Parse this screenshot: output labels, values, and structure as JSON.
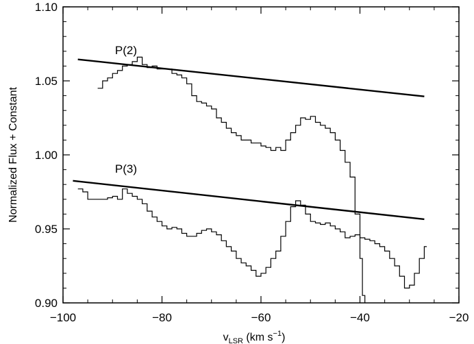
{
  "chart_data": {
    "type": "line",
    "title": "",
    "xlabel": {
      "main": "v",
      "sub": "LSR",
      "unit_pre": " (km s",
      "unit_sup": "−1",
      "unit_post": ")"
    },
    "ylabel": "Normalized Flux + Constant",
    "xlim": [
      -100,
      -20
    ],
    "ylim": [
      0.9,
      1.1
    ],
    "x_ticks": [
      -100,
      -80,
      -60,
      -40,
      -20
    ],
    "x_tick_labels": [
      "−100",
      "−80",
      "−60",
      "−40",
      "−20"
    ],
    "y_ticks": [
      0.9,
      0.95,
      1.0,
      1.05,
      1.1
    ],
    "y_tick_labels": [
      "0.90",
      "0.95",
      "1.00",
      "1.05",
      "1.10"
    ],
    "grid": false,
    "annotations": [
      {
        "text": "P(2)",
        "x": -89.5,
        "y": 1.068
      },
      {
        "text": "P(3)",
        "x": -89.5,
        "y": 0.988
      }
    ],
    "series": [
      {
        "style": "step",
        "x": [
          -93,
          -92,
          -91,
          -90,
          -89,
          -88,
          -87,
          -86,
          -85,
          -84,
          -83,
          -82,
          -81,
          -80,
          -79,
          -78,
          -77,
          -76,
          -75,
          -74,
          -73,
          -72,
          -71,
          -70,
          -69,
          -68,
          -67,
          -66,
          -65,
          -64,
          -63,
          -62,
          -61,
          -60,
          -59,
          -58,
          -57,
          -56,
          -55,
          -54,
          -53,
          -52,
          -51,
          -50,
          -49,
          -48,
          -47,
          -46,
          -45,
          -44,
          -43,
          -42,
          -41,
          -40,
          -39.5,
          -39
        ],
        "y": [
          1.045,
          1.05,
          1.052,
          1.055,
          1.057,
          1.06,
          1.061,
          1.063,
          1.066,
          1.061,
          1.059,
          1.06,
          1.058,
          1.058,
          1.058,
          1.055,
          1.054,
          1.052,
          1.048,
          1.04,
          1.036,
          1.035,
          1.033,
          1.031,
          1.025,
          1.022,
          1.018,
          1.015,
          1.013,
          1.01,
          1.01,
          1.008,
          1.008,
          1.006,
          1.005,
          1.003,
          1.005,
          1.003,
          1.01,
          1.015,
          1.02,
          1.025,
          1.024,
          1.026,
          1.022,
          1.02,
          1.018,
          1.015,
          1.01,
          1.003,
          0.995,
          0.985,
          0.96,
          0.93,
          0.905,
          0.89
        ]
      },
      {
        "style": "step",
        "x": [
          -97,
          -96,
          -95,
          -94,
          -93,
          -92,
          -91,
          -90,
          -89,
          -88,
          -87,
          -86,
          -85,
          -84,
          -83,
          -82,
          -81,
          -80,
          -79,
          -78,
          -77,
          -76,
          -75,
          -74,
          -73,
          -72,
          -71,
          -70,
          -69,
          -68,
          -67,
          -66,
          -65,
          -64,
          -63,
          -62,
          -61,
          -60,
          -59,
          -58,
          -57,
          -56,
          -55,
          -54,
          -53,
          -52,
          -51,
          -50,
          -49,
          -48,
          -47,
          -46,
          -45,
          -44,
          -43,
          -42,
          -41,
          -40,
          -39,
          -38,
          -37,
          -36,
          -35,
          -34,
          -33,
          -32,
          -31,
          -30,
          -29,
          -28,
          -27
        ],
        "y": [
          0.977,
          0.975,
          0.97,
          0.97,
          0.97,
          0.97,
          0.971,
          0.972,
          0.97,
          0.977,
          0.974,
          0.972,
          0.97,
          0.967,
          0.962,
          0.958,
          0.955,
          0.952,
          0.95,
          0.951,
          0.95,
          0.947,
          0.945,
          0.945,
          0.947,
          0.949,
          0.95,
          0.948,
          0.946,
          0.942,
          0.938,
          0.935,
          0.93,
          0.927,
          0.925,
          0.922,
          0.918,
          0.92,
          0.924,
          0.93,
          0.935,
          0.945,
          0.955,
          0.965,
          0.969,
          0.966,
          0.96,
          0.955,
          0.954,
          0.953,
          0.954,
          0.952,
          0.95,
          0.948,
          0.944,
          0.945,
          0.946,
          0.944,
          0.943,
          0.942,
          0.94,
          0.938,
          0.935,
          0.93,
          0.925,
          0.918,
          0.91,
          0.912,
          0.92,
          0.93,
          0.938
        ]
      }
    ],
    "reference_lines": [
      {
        "label": "P(2)",
        "x": [
          -97,
          -27
        ],
        "y": [
          1.0645,
          1.0395
        ]
      },
      {
        "label": "P(3)",
        "x": [
          -98,
          -27
        ],
        "y": [
          0.9825,
          0.9565
        ]
      }
    ]
  }
}
